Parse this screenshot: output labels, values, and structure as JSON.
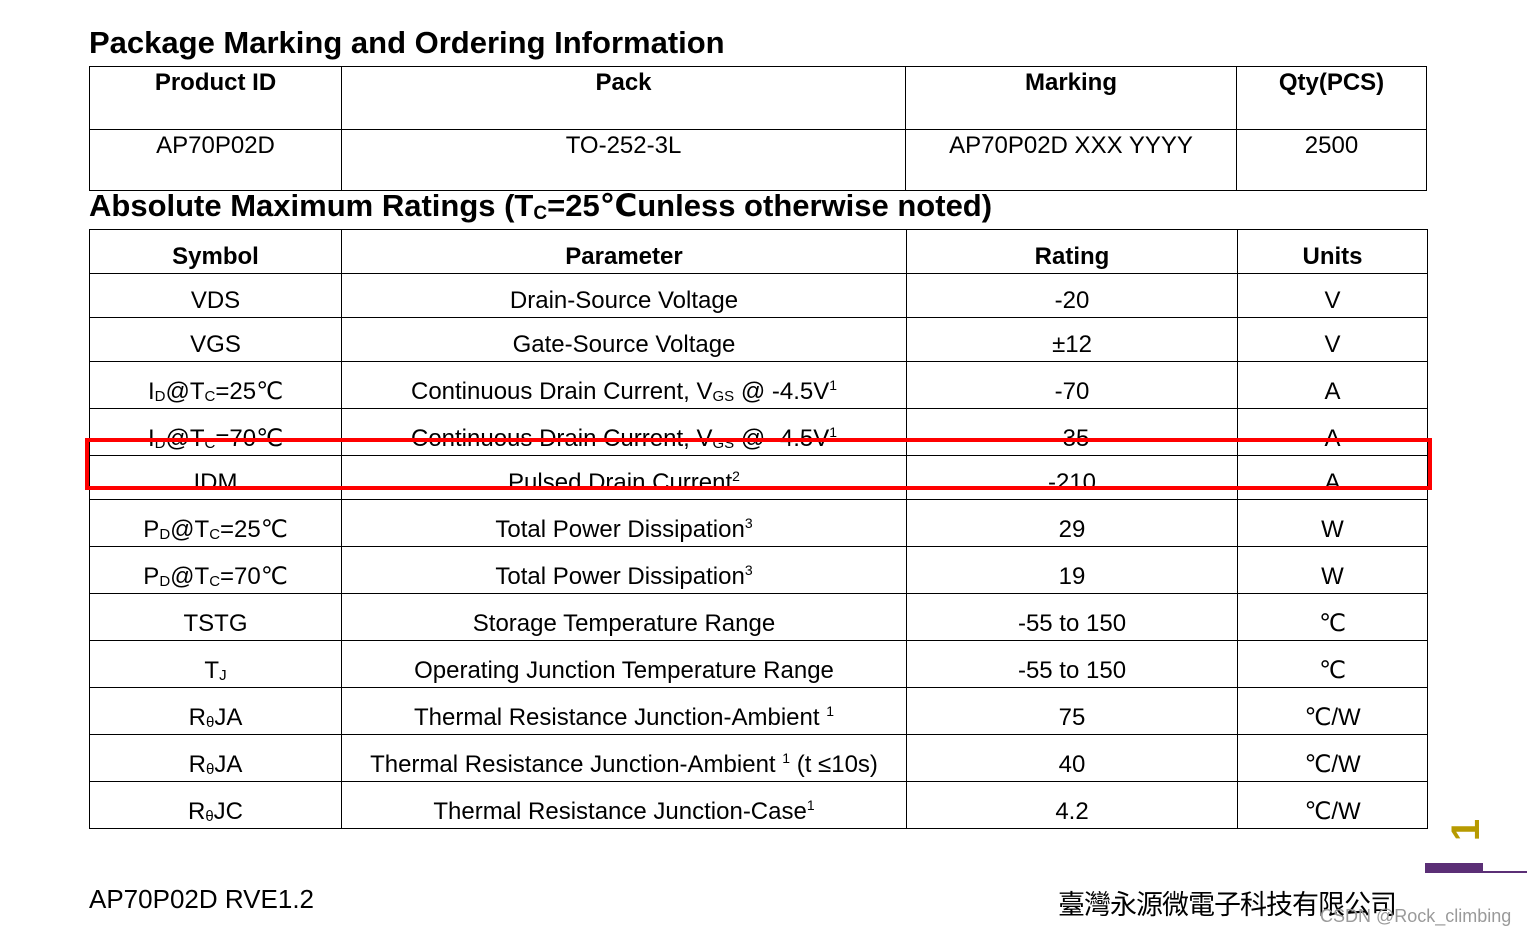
{
  "ordering": {
    "title": "Package Marking and Ordering Information",
    "headers": [
      "Product ID",
      "Pack",
      "Marking",
      "Qty(PCS)"
    ],
    "row": [
      "AP70P02D",
      "TO-252-3L",
      "AP70P02D XXX YYYY",
      "2500"
    ]
  },
  "ratings": {
    "title_pre": "Absolute Maximum Ratings (T",
    "title_sub": "C",
    "title_post": "=25℃unless otherwise noted)",
    "headers": [
      "Symbol",
      "Parameter",
      "Rating",
      "Units"
    ],
    "rows": [
      {
        "sym_main": "VDS",
        "sym_sub": "",
        "sym_after": "",
        "sym_sub2": "",
        "sym_tail": "",
        "param": "Drain-Source Voltage",
        "param_sub": "",
        "param_tail": "",
        "param_sup": "",
        "param_end": "",
        "rating": "-20",
        "unit": "V"
      },
      {
        "sym_main": "VGS",
        "sym_sub": "",
        "sym_after": "",
        "sym_sub2": "",
        "sym_tail": "",
        "param": "Gate-Source Voltage",
        "param_sub": "",
        "param_tail": "",
        "param_sup": "",
        "param_end": "",
        "rating": "±12",
        "unit": "V"
      },
      {
        "sym_main": "I",
        "sym_sub": "D",
        "sym_after": "@T",
        "sym_sub2": "C",
        "sym_tail": "=25℃",
        "param": "Continuous Drain Current, V",
        "param_sub": "GS",
        "param_tail": " @ -4.5V",
        "param_sup": "1",
        "param_end": "",
        "rating": "-70",
        "unit": "A"
      },
      {
        "sym_main": "I",
        "sym_sub": "D",
        "sym_after": "@T",
        "sym_sub2": "C",
        "sym_tail": "=70℃",
        "param": "Continuous Drain Current, V",
        "param_sub": "GS",
        "param_tail": " @ -4.5V",
        "param_sup": "1",
        "param_end": "",
        "rating": "-35",
        "unit": "A"
      },
      {
        "sym_main": "IDM",
        "sym_sub": "",
        "sym_after": "",
        "sym_sub2": "",
        "sym_tail": "",
        "param": "Pulsed Drain Current",
        "param_sub": "",
        "param_tail": "",
        "param_sup": "2",
        "param_end": "",
        "rating": "-210",
        "unit": "A"
      },
      {
        "sym_main": "P",
        "sym_sub": "D",
        "sym_after": "@T",
        "sym_sub2": "C",
        "sym_tail": "=25℃",
        "param": "Total Power Dissipation",
        "param_sub": "",
        "param_tail": "",
        "param_sup": "3",
        "param_end": "",
        "rating": "29",
        "unit": "W"
      },
      {
        "sym_main": "P",
        "sym_sub": "D",
        "sym_after": "@T",
        "sym_sub2": "C",
        "sym_tail": "=70℃",
        "param": "Total Power Dissipation",
        "param_sub": "",
        "param_tail": "",
        "param_sup": "3",
        "param_end": "",
        "rating": "19",
        "unit": "W"
      },
      {
        "sym_main": "TSTG",
        "sym_sub": "",
        "sym_after": "",
        "sym_sub2": "",
        "sym_tail": "",
        "param": "Storage Temperature Range",
        "param_sub": "",
        "param_tail": "",
        "param_sup": "",
        "param_end": "",
        "rating": "-55 to 150",
        "unit": "℃"
      },
      {
        "sym_main": "T",
        "sym_sub": "J",
        "sym_after": "",
        "sym_sub2": "",
        "sym_tail": "",
        "param": "Operating Junction Temperature Range",
        "param_sub": "",
        "param_tail": "",
        "param_sup": "",
        "param_end": "",
        "rating": "-55 to 150",
        "unit": "℃"
      },
      {
        "sym_main": "R",
        "sym_sub": "θ",
        "sym_after": "JA",
        "sym_sub2": "",
        "sym_tail": "",
        "param": "Thermal Resistance Junction-Ambient ",
        "param_sub": "",
        "param_tail": "",
        "param_sup": "1",
        "param_end": "",
        "rating": "75",
        "unit": "℃/W"
      },
      {
        "sym_main": "R",
        "sym_sub": "θ",
        "sym_after": "JA",
        "sym_sub2": "",
        "sym_tail": "",
        "param": "Thermal Resistance Junction-Ambient ",
        "param_sub": "",
        "param_tail": "",
        "param_sup": "1",
        "param_end": " (t ≤10s)",
        "rating": "40",
        "unit": "℃/W"
      },
      {
        "sym_main": "R",
        "sym_sub": "θ",
        "sym_after": "JC",
        "sym_sub2": "",
        "sym_tail": "",
        "param": "Thermal Resistance Junction-Case",
        "param_sub": "",
        "param_tail": "",
        "param_sup": "1",
        "param_end": "",
        "rating": "4.2",
        "unit": "℃/W"
      }
    ]
  },
  "footer": {
    "doc_id": "AP70P02D RVE1.2",
    "company": "臺灣永源微電子科技有限公司",
    "page_number": "1",
    "watermark": "CSDN @Rock_climbing"
  },
  "colors": {
    "highlight": "#ff0000",
    "page_number": "#b79a00",
    "accent": "#5b2f76"
  }
}
